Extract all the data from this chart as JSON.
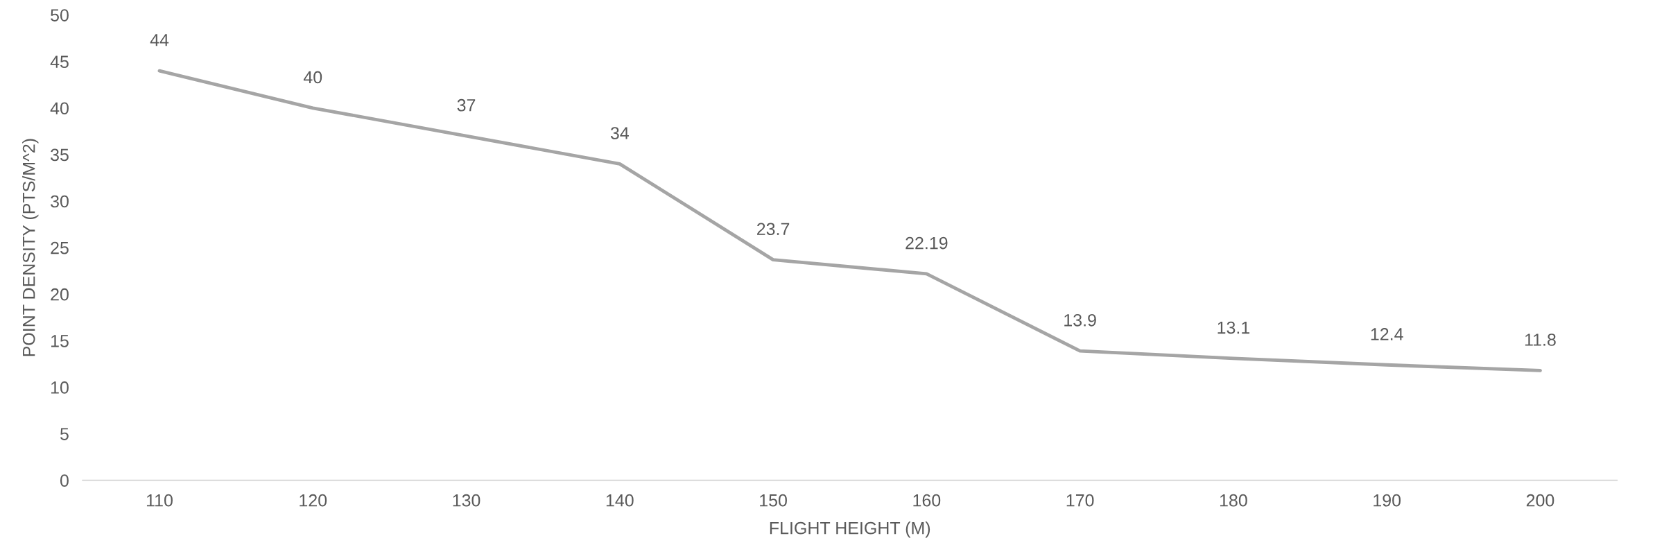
{
  "chart_data": {
    "type": "line",
    "xlabel": "FLIGHT HEIGHT (M)",
    "ylabel": "POINT DENSITY (PTS/M^2)",
    "categories": [
      "110",
      "120",
      "130",
      "140",
      "150",
      "160",
      "170",
      "180",
      "190",
      "200"
    ],
    "series": [
      {
        "color": "#a5a5a5",
        "values": [
          44,
          40,
          37,
          34,
          23.7,
          22.19,
          13.9,
          13.1,
          12.4,
          11.8
        ]
      }
    ],
    "ylim": [
      0,
      50
    ],
    "yticks": [
      0,
      5,
      10,
      15,
      20,
      25,
      30,
      35,
      40,
      45,
      50
    ],
    "data_labels": true,
    "grid": false,
    "legend": false,
    "marker": "none",
    "line_style": "solid"
  }
}
